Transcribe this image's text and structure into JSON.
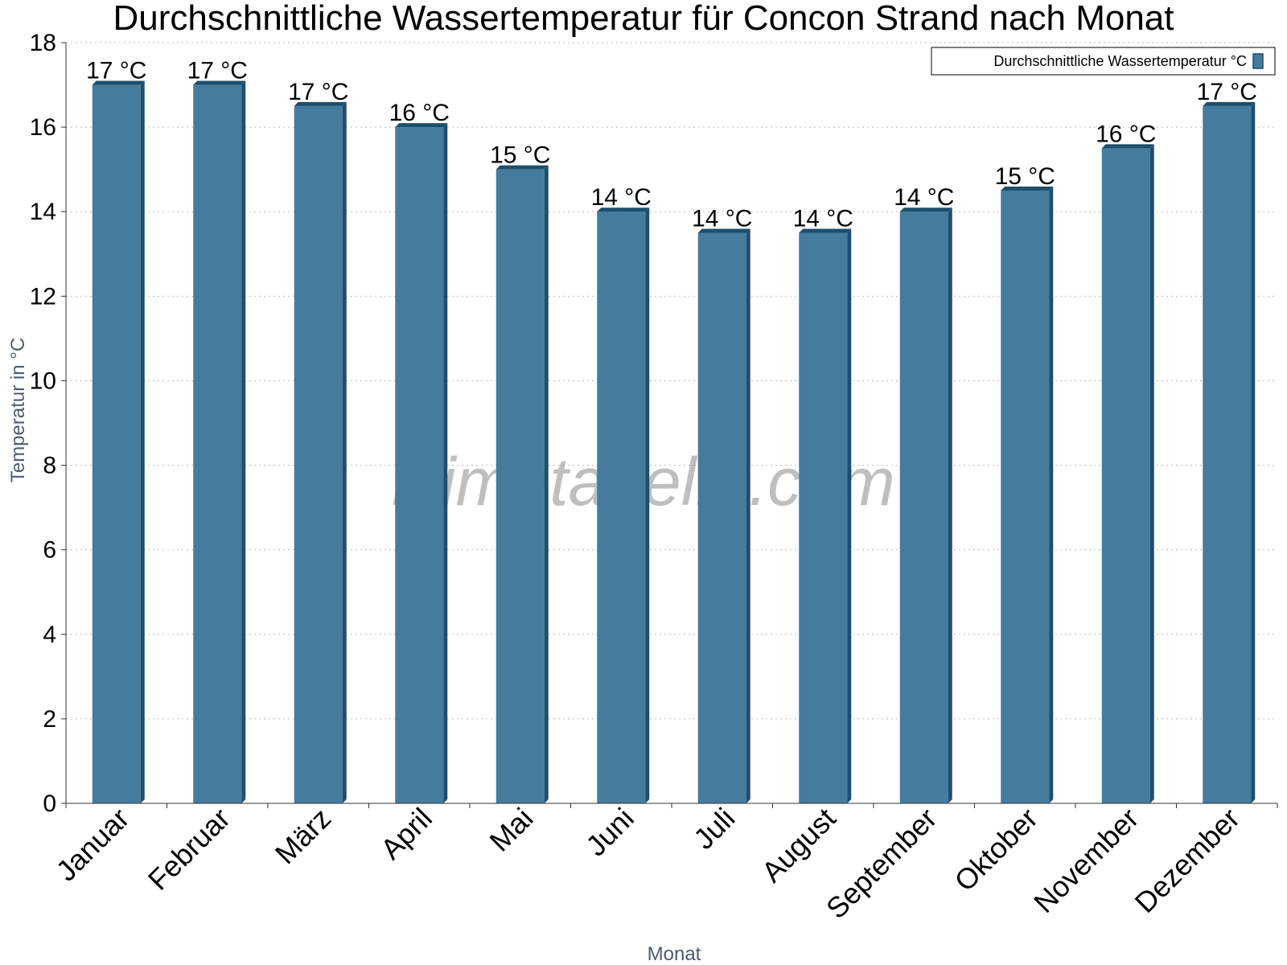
{
  "chart_data": {
    "type": "bar",
    "title": "Durchschnittliche Wassertemperatur für Concon Strand nach Monat",
    "xlabel": "Monat",
    "ylabel": "Temperatur in °C",
    "ylim": [
      0,
      18
    ],
    "yticks": [
      0,
      2,
      4,
      6,
      8,
      10,
      12,
      14,
      16,
      18
    ],
    "grid": true,
    "legend_position": "top-right",
    "categories": [
      "Januar",
      "Februar",
      "März",
      "April",
      "Mai",
      "Juni",
      "Juli",
      "August",
      "September",
      "Oktober",
      "November",
      "Dezember"
    ],
    "series": [
      {
        "name": "Durchschnittliche Wassertemperatur °C",
        "values": [
          17,
          17,
          16.5,
          16,
          15,
          14,
          13.5,
          13.5,
          14,
          14.5,
          15.5,
          16.5
        ],
        "labels": [
          "17 °C",
          "17 °C",
          "17 °C",
          "16 °C",
          "15 °C",
          "14 °C",
          "14 °C",
          "14 °C",
          "14 °C",
          "15 °C",
          "16 °C",
          "17 °C"
        ]
      }
    ],
    "colors": {
      "bar": "#457b9d",
      "bar_dark": "#1d4e6e",
      "grid": "#bbbbbb",
      "axis": "#333333"
    }
  },
  "watermark": "klimatabelle.com"
}
